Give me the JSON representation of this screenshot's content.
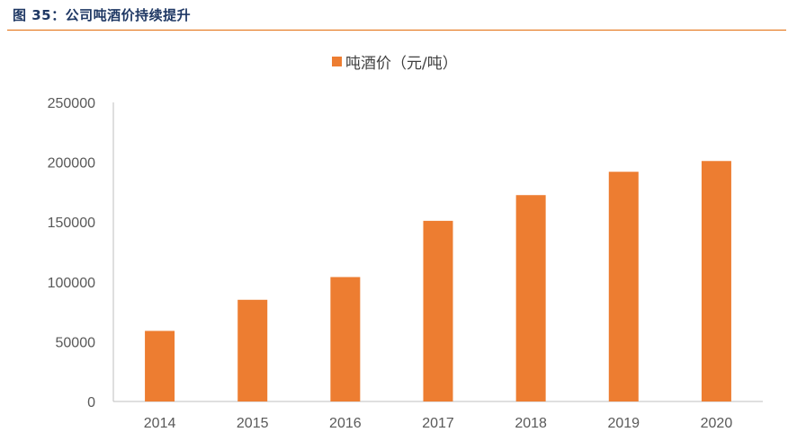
{
  "figure_title": "图 35：公司吨酒价持续提升",
  "colors": {
    "bar": "#ed7d31",
    "title": "#1f3864",
    "rule": "#e36c0a",
    "axis": "#bfbfbf"
  },
  "chart_data": {
    "type": "bar",
    "title": "",
    "categories": [
      "2014",
      "2015",
      "2016",
      "2017",
      "2018",
      "2019",
      "2020"
    ],
    "series": [
      {
        "name": "吨酒价（元/吨）",
        "values": [
          59000,
          85000,
          104000,
          151000,
          172500,
          192000,
          201000
        ]
      }
    ],
    "ylim": [
      0,
      250000
    ],
    "yticks": [
      0,
      50000,
      100000,
      150000,
      200000,
      250000
    ],
    "xlabel": "",
    "ylabel": "",
    "legend_position": "top-center",
    "grid": false
  }
}
